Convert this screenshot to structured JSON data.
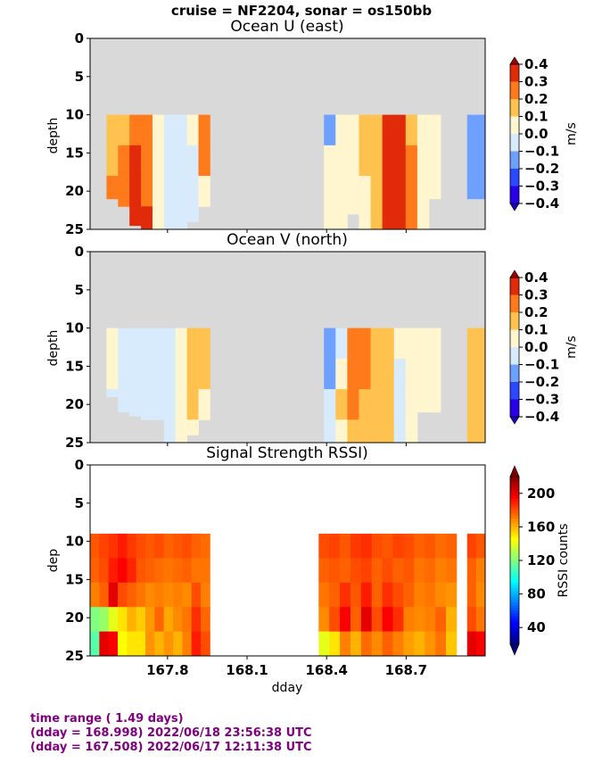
{
  "figure": {
    "suptitle": "cruise = NF2204,  sonar = os150bb",
    "background": "#ffffff",
    "nodata_color": "#d9d9d9"
  },
  "footer": {
    "line1": "time range ( 1.49 days)",
    "line2": "(dday = 168.998) 2022/06/18 23:56:38 UTC",
    "line3": "(dday = 167.508) 2022/06/17 12:11:38 UTC",
    "color": "#800080"
  },
  "chart_data": [
    {
      "type": "heatmap",
      "title": "Ocean U (east)",
      "ylabel": "depth",
      "xlabel": "",
      "xlim": [
        167.508,
        168.998
      ],
      "ylim": [
        25,
        0
      ],
      "x_ticks": [
        167.8,
        168.1,
        168.4,
        168.7
      ],
      "x_tick_labels": [],
      "y_ticks": [
        0,
        5,
        10,
        15,
        20,
        25
      ],
      "y_tick_labels": [
        "0",
        "5",
        "10",
        "15",
        "20",
        "25"
      ],
      "colorbar": {
        "label": "m/s",
        "levels": [
          -0.4,
          -0.3,
          -0.2,
          -0.1,
          0.0,
          0.1,
          0.2,
          0.3,
          0.4
        ],
        "tick_labels": [
          "−0.4",
          "−0.3",
          "−0.2",
          "−0.1",
          "0.0",
          "0.1",
          "0.2",
          "0.3",
          "0.4"
        ],
        "colors": [
          "#2a00e8",
          "#2b47ff",
          "#6ea1ff",
          "#d8ebfc",
          "#fff6d0",
          "#ffc24f",
          "#ff7a1a",
          "#e02a0a"
        ],
        "extend_low": "#1e00c0",
        "extend_high": "#a00000"
      },
      "segments": [
        {
          "x0": 167.57,
          "x1": 167.96,
          "columns": [
            [
              0.15,
              0.18,
              0.2,
              0.2
            ],
            [
              0.18,
              0.22,
              0.25,
              0.28
            ],
            [
              0.28,
              0.32,
              0.3,
              0.3
            ],
            [
              0.24,
              0.25,
              0.27,
              0.3
            ],
            [
              0.08,
              0.06,
              0.05,
              0.06
            ],
            [
              -0.02,
              -0.04,
              -0.05,
              -0.05
            ],
            [
              -0.05,
              -0.06,
              -0.07,
              -0.06
            ],
            [
              0.05,
              -0.03,
              -0.05,
              -0.04
            ],
            [
              0.22,
              0.2,
              0.0,
              -0.02
            ]
          ],
          "fill_depth": [
            21,
            22,
            24.5,
            25,
            25,
            25,
            25,
            24,
            22
          ]
        },
        {
          "x0": 168.39,
          "x1": 168.83,
          "columns": [
            [
              -0.12,
              0.05,
              0.05,
              0.04
            ],
            [
              0.05,
              0.04,
              0.03,
              0.03
            ],
            [
              0.06,
              0.05,
              0.04,
              0.02
            ],
            [
              0.12,
              0.12,
              0.08,
              0.06
            ],
            [
              0.15,
              0.17,
              0.18,
              0.15
            ],
            [
              0.3,
              0.32,
              0.34,
              0.33
            ],
            [
              0.33,
              0.35,
              0.36,
              0.34
            ],
            [
              0.18,
              0.22,
              0.25,
              0.2
            ],
            [
              0.05,
              0.04,
              0.03,
              0.04
            ],
            [
              0.05,
              0.06,
              0.05,
              0.05
            ]
          ],
          "fill_depth": [
            25,
            25,
            23,
            25,
            25,
            25,
            25,
            25,
            25,
            21
          ]
        },
        {
          "x0": 168.93,
          "x1": 168.998,
          "columns": [
            [
              -0.12,
              -0.15,
              -0.15,
              -0.15
            ],
            [
              -0.12,
              -0.14,
              -0.16,
              -0.18
            ]
          ],
          "fill_depth": [
            21,
            21
          ]
        }
      ],
      "depth_bins": [
        10,
        14,
        18,
        22
      ]
    },
    {
      "type": "heatmap",
      "title": "Ocean V (north)",
      "ylabel": "depth",
      "xlabel": "",
      "xlim": [
        167.508,
        168.998
      ],
      "ylim": [
        25,
        0
      ],
      "x_ticks": [
        167.8,
        168.1,
        168.4,
        168.7
      ],
      "x_tick_labels": [],
      "y_ticks": [
        0,
        5,
        10,
        15,
        20,
        25
      ],
      "y_tick_labels": [
        "0",
        "5",
        "10",
        "15",
        "20",
        "25"
      ],
      "colorbar": {
        "label": "m/s",
        "levels": [
          -0.4,
          -0.3,
          -0.2,
          -0.1,
          0.0,
          0.1,
          0.2,
          0.3,
          0.4
        ],
        "tick_labels": [
          "−0.4",
          "−0.3",
          "−0.2",
          "−0.1",
          "0.0",
          "0.1",
          "0.2",
          "0.3",
          "0.4"
        ],
        "colors": [
          "#2a00e8",
          "#2b47ff",
          "#6ea1ff",
          "#d8ebfc",
          "#fff6d0",
          "#ffc24f",
          "#ff7a1a",
          "#e02a0a"
        ],
        "extend_low": "#1e00c0",
        "extend_high": "#a00000"
      },
      "segments": [
        {
          "x0": 167.57,
          "x1": 167.96,
          "columns": [
            [
              0.05,
              0.03,
              -0.02,
              -0.02
            ],
            [
              -0.05,
              -0.06,
              -0.06,
              -0.05
            ],
            [
              -0.06,
              -0.07,
              -0.06,
              -0.05
            ],
            [
              -0.06,
              -0.05,
              -0.06,
              -0.06
            ],
            [
              -0.07,
              -0.08,
              -0.06,
              -0.05
            ],
            [
              -0.05,
              -0.05,
              -0.04,
              -0.06
            ],
            [
              0.03,
              0.02,
              0.05,
              0.04
            ],
            [
              0.15,
              0.12,
              0.1,
              0.06
            ],
            [
              0.18,
              0.1,
              0.05,
              0.05
            ]
          ],
          "fill_depth": [
            19,
            21,
            21.5,
            22,
            22,
            25,
            25,
            24,
            22
          ]
        },
        {
          "x0": 168.39,
          "x1": 168.83,
          "columns": [
            [
              -0.14,
              -0.12,
              -0.05,
              -0.05
            ],
            [
              -0.06,
              0.05,
              0.1,
              0.08
            ],
            [
              0.22,
              0.25,
              0.22,
              0.15
            ],
            [
              0.25,
              0.22,
              0.18,
              0.15
            ],
            [
              0.15,
              0.18,
              0.15,
              0.14
            ],
            [
              0.1,
              0.12,
              0.14,
              0.13
            ],
            [
              0.05,
              -0.04,
              -0.06,
              -0.03
            ],
            [
              0.06,
              0.05,
              0.04,
              0.03
            ],
            [
              0.04,
              0.05,
              0.06,
              0.05
            ],
            [
              0.04,
              0.05,
              0.04,
              0.04
            ]
          ],
          "fill_depth": [
            25,
            25,
            25,
            25,
            25,
            25,
            25,
            25,
            21,
            21
          ]
        },
        {
          "x0": 168.93,
          "x1": 168.998,
          "columns": [
            [
              0.12,
              0.15,
              0.14,
              0.12
            ],
            [
              0.14,
              0.16,
              0.15,
              0.13
            ]
          ],
          "fill_depth": [
            25,
            25
          ]
        }
      ],
      "depth_bins": [
        10,
        14,
        18,
        22
      ]
    },
    {
      "type": "heatmap",
      "title": "Signal Strength RSSI)",
      "ylabel": "dep",
      "xlabel": "dday",
      "xlim": [
        167.508,
        168.998
      ],
      "ylim": [
        25,
        0
      ],
      "x_ticks": [
        167.8,
        168.1,
        168.4,
        168.7
      ],
      "x_tick_labels": [
        "167.8",
        "168.1",
        "168.4",
        "168.7"
      ],
      "y_ticks": [
        0,
        5,
        10,
        15,
        20,
        25
      ],
      "y_tick_labels": [
        "0",
        "5",
        "10",
        "15",
        "20",
        "25"
      ],
      "colorbar": {
        "label": "RSSI counts",
        "range": [
          20,
          220
        ],
        "ticks": [
          40,
          80,
          120,
          160,
          200
        ],
        "tick_labels": [
          "40",
          "80",
          "120",
          "160",
          "200"
        ],
        "colormap": "jet"
      },
      "segments": [
        {
          "x0": 167.508,
          "x1": 167.96,
          "columns": [
            [
              178,
              176,
              170,
              120,
              112
            ],
            [
              182,
              180,
              176,
              125,
              200
            ],
            [
              185,
              190,
              200,
              140,
              196
            ],
            [
              190,
              195,
              180,
              150,
              145
            ],
            [
              184,
              188,
              176,
              160,
              150
            ],
            [
              180,
              178,
              172,
              155,
              150
            ],
            [
              178,
              176,
              168,
              165,
              166
            ],
            [
              180,
              174,
              170,
              175,
              160
            ],
            [
              176,
              172,
              168,
              162,
              166
            ],
            [
              178,
              174,
              170,
              168,
              160
            ],
            [
              180,
              176,
              168,
              172,
              170
            ],
            [
              176,
              172,
              180,
              186,
              190
            ],
            [
              174,
              172,
              170,
              175,
              180
            ]
          ]
        },
        {
          "x0": 168.37,
          "x1": 168.89,
          "columns": [
            [
              180,
              176,
              172,
              168,
              140
            ],
            [
              182,
              178,
              176,
              180,
              150
            ],
            [
              178,
              176,
              186,
              196,
              170
            ],
            [
              184,
              180,
              178,
              176,
              160
            ],
            [
              186,
              182,
              190,
              200,
              174
            ],
            [
              180,
              176,
              176,
              180,
              168
            ],
            [
              178,
              180,
              186,
              196,
              176
            ],
            [
              182,
              176,
              180,
              186,
              170
            ],
            [
              180,
              178,
              176,
              170,
              164
            ],
            [
              176,
              172,
              170,
              168,
              160
            ],
            [
              178,
              174,
              172,
              170,
              166
            ],
            [
              174,
              170,
              168,
              176,
              172
            ],
            [
              176,
              172,
              166,
              160,
              156
            ]
          ]
        },
        {
          "x0": 168.93,
          "x1": 168.998,
          "columns": [
            [
              182,
              176,
              176,
              180,
              200
            ],
            [
              178,
              170,
              168,
              172,
              196
            ]
          ]
        }
      ],
      "depth_bins": [
        9,
        12.2,
        15.4,
        18.6,
        21.8
      ]
    }
  ]
}
